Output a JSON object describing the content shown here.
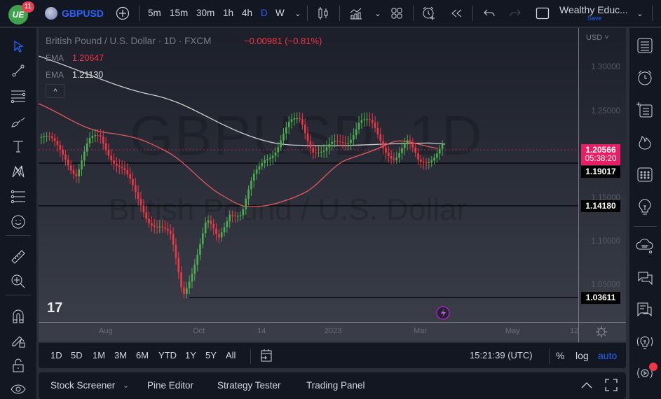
{
  "topbar": {
    "notifications": "11",
    "symbol": "GBPUSD",
    "timeframes": [
      "5m",
      "15m",
      "30m",
      "1h",
      "4h",
      "D",
      "W"
    ],
    "active_timeframe": "D",
    "layout_name": "Wealthy Educ...",
    "save_label": "Save"
  },
  "legend": {
    "title": "British Pound / U.S. Dollar · 1D · FXCM",
    "change": "−0.00981 (−0.81%)",
    "ema1_label": "EMA",
    "ema1_value": "1.20647",
    "ema2_label": "EMA",
    "ema2_value": "1.21130",
    "collapse": "^"
  },
  "watermark": {
    "symbol": "GBPUSD, 1D",
    "name": "British Pound / U.S. Dollar"
  },
  "price_axis": {
    "currency": "USD ˅",
    "ticks": [
      "1.30000",
      "1.25000",
      "1.15000",
      "1.10000",
      "1.05000"
    ],
    "current_price": "1.20566",
    "countdown": "05:38:20",
    "levels": [
      "1.19017",
      "1.14180",
      "1.03611"
    ]
  },
  "time_axis": {
    "labels": [
      "Aug",
      "Oct",
      "14",
      "2023",
      "Mar",
      "May",
      "12"
    ]
  },
  "ranges": {
    "items": [
      "1D",
      "5D",
      "1M",
      "3M",
      "6M",
      "YTD",
      "1Y",
      "5Y",
      "All"
    ],
    "clock": "15:21:39 (UTC)",
    "percent": "%",
    "log": "log",
    "auto": "auto"
  },
  "panels": {
    "items": [
      "Stock Screener",
      "Pine Editor",
      "Strategy Tester",
      "Trading Panel"
    ]
  },
  "colors": {
    "up": "#4caf50",
    "down": "#f23645",
    "accent": "#2962ff",
    "price_badge": "#e91e63"
  },
  "chart_data": {
    "type": "candlestick",
    "title": "British Pound / U.S. Dollar · 1D · FXCM",
    "x_labels": [
      "Aug",
      "Oct",
      "14",
      "2023",
      "Mar",
      "May"
    ],
    "ylim": [
      1.03,
      1.32
    ],
    "y_ticks": [
      1.05,
      1.1,
      1.15,
      1.25,
      1.3
    ],
    "horizontal_levels": [
      1.19017,
      1.1418,
      1.03611
    ],
    "last_price": 1.20566,
    "series": [
      {
        "name": "EMA (fast)",
        "last": 1.20647,
        "color": "#e05a5a"
      },
      {
        "name": "EMA (slow)",
        "last": 1.2113,
        "color": "#cfcfcf"
      }
    ],
    "approx_close_path": [
      1.22,
      1.21,
      1.2,
      1.18,
      1.21,
      1.22,
      1.2,
      1.18,
      1.15,
      1.13,
      1.12,
      1.1,
      1.04,
      1.08,
      1.12,
      1.1,
      1.14,
      1.13,
      1.17,
      1.2,
      1.21,
      1.23,
      1.24,
      1.21,
      1.2,
      1.21,
      1.22,
      1.24,
      1.23,
      1.21,
      1.2,
      1.21,
      1.19,
      1.2,
      1.21
    ]
  }
}
